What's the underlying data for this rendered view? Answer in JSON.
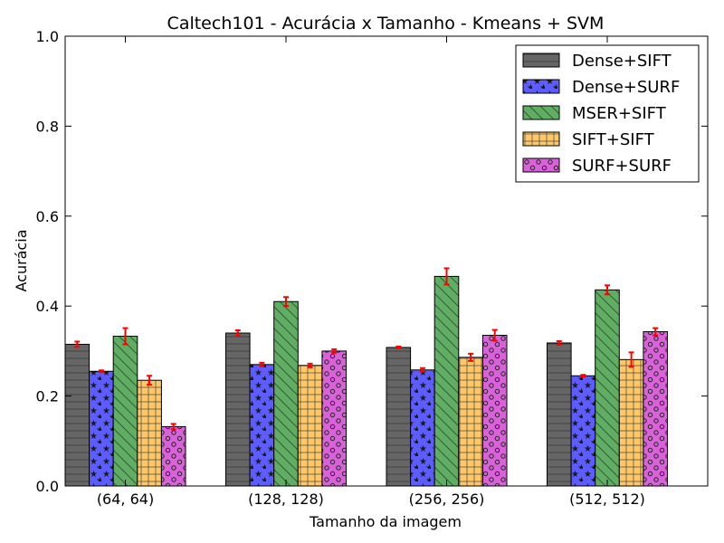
{
  "chart_data": {
    "type": "bar",
    "title": "Caltech101 - Acurácia x Tamanho - Kmeans + SVM",
    "xlabel": "Tamanho da imagem",
    "ylabel": "Acurácia",
    "ylim": [
      0.0,
      1.0
    ],
    "yticks": [
      "0.0",
      "0.2",
      "0.4",
      "0.6",
      "0.8",
      "1.0"
    ],
    "categories": [
      "(64, 64)",
      "(128, 128)",
      "(256, 256)",
      "(512, 512)"
    ],
    "legend_position": "top-right",
    "grid": false,
    "error_bar_color": "#ff0000",
    "series": [
      {
        "name": "Dense+SIFT",
        "color": "#666666",
        "hatch": "horizontal-lines",
        "values": [
          0.315,
          0.34,
          0.308,
          0.318
        ],
        "errors": [
          0.006,
          0.006,
          0.002,
          0.004
        ]
      },
      {
        "name": "Dense+SURF",
        "color": "#5c5cff",
        "hatch": "stars",
        "values": [
          0.255,
          0.27,
          0.258,
          0.245
        ],
        "errors": [
          0.002,
          0.004,
          0.004,
          0.002
        ]
      },
      {
        "name": "MSER+SIFT",
        "color": "#5fae64",
        "hatch": "diagonal-lines",
        "values": [
          0.333,
          0.41,
          0.466,
          0.436
        ],
        "errors": [
          0.018,
          0.01,
          0.018,
          0.01
        ]
      },
      {
        "name": "SIFT+SIFT",
        "color": "#ffc766",
        "hatch": "grid",
        "values": [
          0.235,
          0.268,
          0.286,
          0.281
        ],
        "errors": [
          0.01,
          0.004,
          0.008,
          0.016
        ]
      },
      {
        "name": "SURF+SURF",
        "color": "#d862d8",
        "hatch": "circles",
        "values": [
          0.132,
          0.3,
          0.335,
          0.343
        ],
        "errors": [
          0.006,
          0.004,
          0.012,
          0.008
        ]
      }
    ]
  }
}
